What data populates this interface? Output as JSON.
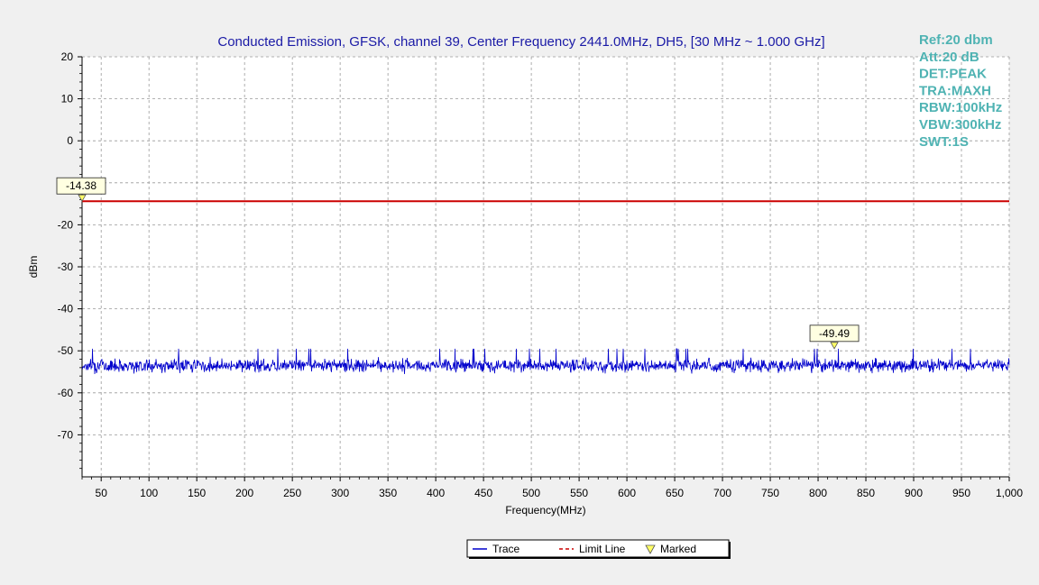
{
  "chart_data": {
    "type": "line",
    "title": "Conducted Emission, GFSK, channel 39, Center Frequency 2441.0MHz, DH5, [30 MHz ~ 1.000 GHz]",
    "xlabel": "Frequency(MHz)",
    "ylabel": "dBm",
    "xlim": [
      30,
      1000
    ],
    "ylim": [
      -80,
      20
    ],
    "x_ticks": [
      50,
      100,
      150,
      200,
      250,
      300,
      350,
      400,
      450,
      500,
      550,
      600,
      650,
      700,
      750,
      800,
      850,
      900,
      950,
      1000
    ],
    "x_tick_labels": [
      "50",
      "100",
      "150",
      "200",
      "250",
      "300",
      "350",
      "400",
      "450",
      "500",
      "550",
      "600",
      "650",
      "700",
      "750",
      "800",
      "850",
      "900",
      "950",
      "1,000"
    ],
    "y_ticks": [
      20,
      10,
      0,
      -10,
      -20,
      -30,
      -40,
      -50,
      -60,
      -70
    ],
    "grid": true,
    "legend_position": "bottom-center",
    "instrument_settings": [
      "Ref:20 dbm",
      "Att:20 dB",
      "DET:PEAK",
      "TRA:MAXH",
      "RBW:100kHz",
      "VBW:300kHz",
      "SWT:1S"
    ],
    "series": [
      {
        "name": "Trace",
        "color": "#0000cc",
        "style": "noise floor",
        "x_range": [
          30,
          1000
        ],
        "typical_level": -53.5,
        "level_range": [
          -56.5,
          -49.5
        ]
      },
      {
        "name": "Limit Line",
        "color": "#cc0000",
        "style": "dashed",
        "x": [
          30,
          1000
        ],
        "y": [
          -14.38,
          -14.38
        ]
      },
      {
        "name": "Marked",
        "color": "#ffff66",
        "style": "triangle",
        "points": [
          {
            "x": 30,
            "y": -14.38,
            "label": "-14.38"
          },
          {
            "x": 817,
            "y": -49.49,
            "label": "-49.49"
          }
        ]
      }
    ]
  },
  "colors": {
    "background": "#f0f0f0",
    "plot_background": "#ffffff",
    "title": "#1a1aa6",
    "settings_text": "#4fb3b3",
    "grid": "#999999",
    "trace": "#0000cc",
    "limit": "#cc0000",
    "marker_fill": "#ffff66"
  }
}
